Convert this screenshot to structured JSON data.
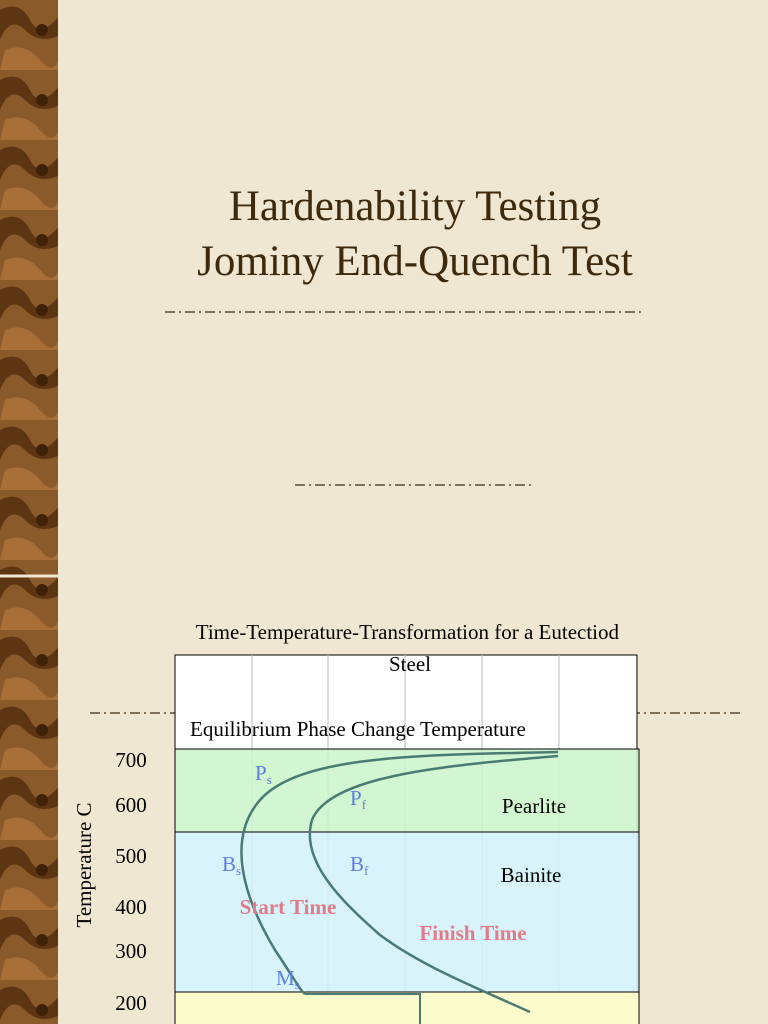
{
  "slide_1": {
    "title_lines": [
      "Hardenability Testing",
      "Jominy End-Quench Test"
    ]
  },
  "slide_2": {
    "title": "Time-Temperature-Transformation for a Eutectiod Steel",
    "diagram": {
      "band_label": "Equilibrium Phase Change Temperature",
      "y_axis_label": "Temperature C",
      "y_labels": [
        "700",
        "600",
        "500",
        "400",
        "300",
        "200"
      ],
      "regions": [
        "Pearlite",
        "Bainite"
      ],
      "points": [
        {
          "main": "P",
          "sub": "s"
        },
        {
          "main": "P",
          "sub": "f"
        },
        {
          "main": "B",
          "sub": "s"
        },
        {
          "main": "B",
          "sub": "f"
        },
        {
          "main": "M",
          "sub": "s"
        }
      ],
      "curve_labels": [
        "Start Time",
        "Finish Time"
      ]
    }
  }
}
